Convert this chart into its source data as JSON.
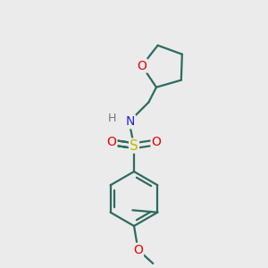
{
  "background_color": "#ebebeb",
  "bond_color": "#2d6b5e",
  "bond_width": 1.6,
  "atom_colors": {
    "O": "#ee0000",
    "N": "#2020dd",
    "S": "#bbbb00",
    "H": "#777777"
  },
  "font_size_atom": 10,
  "figsize": [
    3.0,
    3.0
  ],
  "dpi": 100
}
